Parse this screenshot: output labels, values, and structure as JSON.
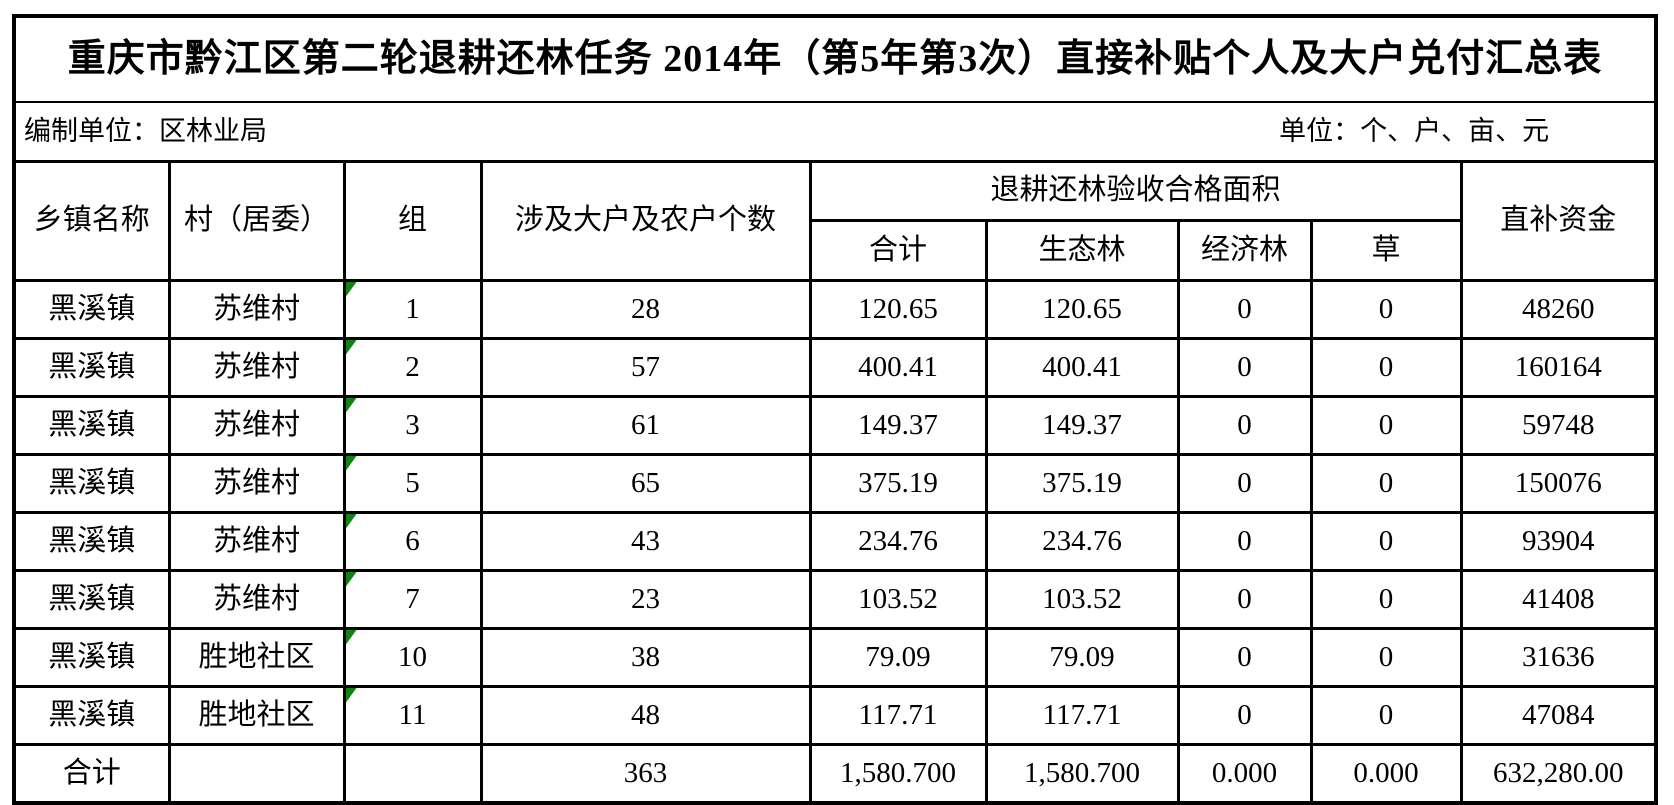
{
  "title": "重庆市黔江区第二轮退耕还林任务 2014年（第5年第3次）直接补贴个人及大户兑付汇总表",
  "info": {
    "left": "编制单位：区林业局",
    "right": "单位：个、户、亩、元"
  },
  "colors": {
    "border": "#000000",
    "background": "#ffffff",
    "flag_green": "#128212"
  },
  "table": {
    "headers": {
      "township": "乡镇名称",
      "village": "村（居委）",
      "group": "组",
      "household_count": "涉及大户及农户个数",
      "area_group": "退耕还林验收合格面积",
      "area_total": "合计",
      "ecological_forest": "生态林",
      "economic_forest": "经济林",
      "grass": "草",
      "subsidy": "直补资金"
    },
    "rows": [
      {
        "township": "黑溪镇",
        "village": "苏维村",
        "group": "1",
        "count": "28",
        "area_total": "120.65",
        "eco": "120.65",
        "econ": "0",
        "grass": "0",
        "subsidy": "48260",
        "flag": true
      },
      {
        "township": "黑溪镇",
        "village": "苏维村",
        "group": "2",
        "count": "57",
        "area_total": "400.41",
        "eco": "400.41",
        "econ": "0",
        "grass": "0",
        "subsidy": "160164",
        "flag": true
      },
      {
        "township": "黑溪镇",
        "village": "苏维村",
        "group": "3",
        "count": "61",
        "area_total": "149.37",
        "eco": "149.37",
        "econ": "0",
        "grass": "0",
        "subsidy": "59748",
        "flag": true
      },
      {
        "township": "黑溪镇",
        "village": "苏维村",
        "group": "5",
        "count": "65",
        "area_total": "375.19",
        "eco": "375.19",
        "econ": "0",
        "grass": "0",
        "subsidy": "150076",
        "flag": true
      },
      {
        "township": "黑溪镇",
        "village": "苏维村",
        "group": "6",
        "count": "43",
        "area_total": "234.76",
        "eco": "234.76",
        "econ": "0",
        "grass": "0",
        "subsidy": "93904",
        "flag": true
      },
      {
        "township": "黑溪镇",
        "village": "苏维村",
        "group": "7",
        "count": "23",
        "area_total": "103.52",
        "eco": "103.52",
        "econ": "0",
        "grass": "0",
        "subsidy": "41408",
        "flag": true
      },
      {
        "township": "黑溪镇",
        "village": "胜地社区",
        "group": "10",
        "count": "38",
        "area_total": "79.09",
        "eco": "79.09",
        "econ": "0",
        "grass": "0",
        "subsidy": "31636",
        "flag": true
      },
      {
        "township": "黑溪镇",
        "village": "胜地社区",
        "group": "11",
        "count": "48",
        "area_total": "117.71",
        "eco": "117.71",
        "econ": "0",
        "grass": "0",
        "subsidy": "47084",
        "flag": true
      }
    ],
    "total_row": {
      "label": "合计",
      "village": "",
      "group": "",
      "count": "363",
      "area_total": "1,580.700",
      "eco": "1,580.700",
      "econ": "0.000",
      "grass": "0.000",
      "subsidy": "632,280.00"
    }
  }
}
